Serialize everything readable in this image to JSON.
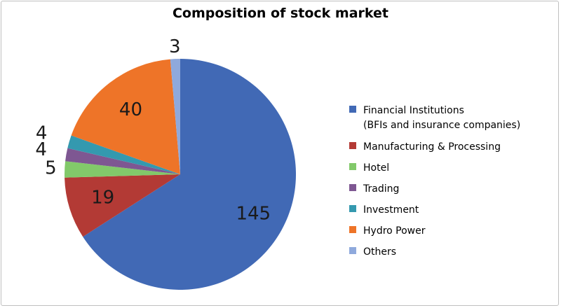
{
  "chart_data": {
    "type": "pie",
    "title": "Composition of stock market",
    "slices": [
      {
        "label": "Financial Institutions",
        "label_line2": "(BFIs and insurance companies)",
        "value": 145,
        "color": "#4169B5"
      },
      {
        "label": "Manufacturing & Processing",
        "value": 19,
        "color": "#B33A35"
      },
      {
        "label": "Hotel",
        "value": 5,
        "color": "#82C96A"
      },
      {
        "label": "Trading",
        "value": 4,
        "color": "#7E5792"
      },
      {
        "label": "Investment",
        "value": 4,
        "color": "#3499AF"
      },
      {
        "label": "Hydro Power",
        "value": 40,
        "color": "#EE7428"
      },
      {
        "label": "Others",
        "value": 3,
        "color": "#8FA9DC"
      }
    ],
    "legend_position": "right"
  }
}
